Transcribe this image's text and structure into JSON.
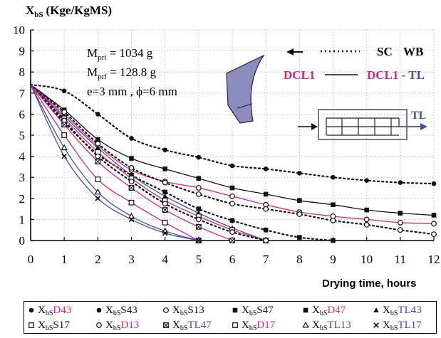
{
  "chart_data": {
    "type": "line",
    "ylabel": "X",
    "ylabel_sub": "bS",
    "ylabel_units": "(Kge/KgMS)",
    "xlabel": "Drying time, hours",
    "xlim": [
      0,
      12
    ],
    "ylim": [
      0,
      10
    ],
    "x_ticks": [
      0,
      1,
      2,
      3,
      4,
      5,
      6,
      7,
      8,
      9,
      10,
      11,
      12
    ],
    "y_ticks": [
      0,
      1,
      2,
      3,
      4,
      5,
      6,
      7,
      8,
      9,
      10
    ],
    "grid": true,
    "annotations": {
      "mpri": "M",
      "mpri_sub": "pri",
      "mpri_val": " = 1034 g",
      "mprf": "M",
      "mprf_sub": "prf",
      "mprf_val": " = 128.8 g",
      "geom": "e=3 mm , ϕ=6 mm",
      "sc_label": "SC",
      "wb_label": "WB",
      "dcl1_label": "DCL1",
      "dcl1tl_label": "DCL1",
      "dcl1tl_dash": " - ",
      "dcl1tl_tl": "TL",
      "tl_arrow_label": "TL"
    },
    "colors": {
      "black": "#111111",
      "pink": "#d6267c",
      "blue": "#3f4fa8",
      "shape": "#8c8cc0"
    },
    "series": [
      {
        "name": "XbsD43",
        "style": "dotted",
        "color": "black",
        "marker": "circle-filled",
        "x": [
          0,
          1,
          2,
          3,
          4,
          5,
          6,
          7,
          8,
          9,
          10,
          11,
          12
        ],
        "values": [
          7.4,
          7.1,
          6.0,
          4.85,
          4.3,
          3.95,
          3.55,
          3.4,
          3.2,
          3.0,
          2.85,
          2.75,
          2.7
        ]
      },
      {
        "name": "XbsS43",
        "style": "solid",
        "color": "black",
        "marker": "square-filled",
        "x": [
          0,
          1,
          2,
          3,
          4,
          5,
          6,
          7,
          8,
          9,
          10,
          11,
          12
        ],
        "values": [
          7.4,
          6.2,
          4.8,
          3.9,
          3.4,
          2.95,
          2.5,
          2.2,
          1.9,
          1.7,
          1.45,
          1.3,
          1.2
        ]
      },
      {
        "name": "XbsS13",
        "style": "solid",
        "color": "pink",
        "marker": "circle-open",
        "x": [
          0,
          1,
          2,
          3,
          4,
          5,
          6,
          7,
          8,
          9,
          10,
          11,
          12
        ],
        "values": [
          7.4,
          6.0,
          4.5,
          3.35,
          2.8,
          2.5,
          2.1,
          1.7,
          1.35,
          1.15,
          1.0,
          0.85,
          0.8
        ]
      },
      {
        "name": "XbsS47",
        "style": "dotted",
        "color": "black",
        "marker": "circle-open",
        "x": [
          0,
          1,
          2,
          3,
          4,
          5,
          6,
          7,
          8,
          9,
          10,
          11,
          12
        ],
        "values": [
          7.4,
          6.1,
          4.6,
          3.45,
          2.75,
          2.2,
          1.75,
          1.5,
          1.25,
          0.95,
          0.75,
          0.5,
          0.3
        ]
      },
      {
        "name": "XbsD47",
        "style": "dotted",
        "color": "black",
        "marker": "square-filled",
        "x": [
          0,
          1,
          2,
          3,
          4,
          5,
          6,
          7,
          8,
          9
        ],
        "values": [
          7.4,
          5.6,
          4.1,
          3.1,
          2.3,
          1.5,
          0.95,
          0.5,
          0.15,
          0.0
        ]
      },
      {
        "name": "XbsTL43",
        "style": "solid",
        "color": "blue",
        "marker": "triangle-filled",
        "x": [
          0,
          1,
          2,
          3,
          4,
          5,
          6,
          7
        ],
        "values": [
          7.4,
          5.9,
          4.4,
          3.1,
          2.1,
          1.3,
          0.6,
          0.0
        ]
      },
      {
        "name": "XbsS17",
        "style": "solid",
        "color": "pink",
        "marker": "square-open",
        "x": [
          0,
          1,
          2,
          3,
          4,
          5,
          6,
          7
        ],
        "values": [
          7.4,
          5.8,
          4.2,
          2.95,
          1.9,
          1.15,
          0.5,
          0.0
        ]
      },
      {
        "name": "XbsD13",
        "style": "dotted",
        "color": "black",
        "marker": "circle-open",
        "x": [
          0,
          1,
          2,
          3,
          4,
          5,
          6,
          7
        ],
        "values": [
          7.4,
          5.7,
          4.0,
          2.8,
          1.75,
          1.0,
          0.4,
          0.0
        ]
      },
      {
        "name": "XbsTL47",
        "style": "solid",
        "color": "pink",
        "marker": "square-x",
        "x": [
          0,
          1,
          2,
          3,
          4,
          5,
          6
        ],
        "values": [
          7.4,
          5.5,
          3.75,
          2.5,
          1.45,
          0.65,
          0.0
        ]
      },
      {
        "name": "XbsD17",
        "style": "solid",
        "color": "pink",
        "marker": "square-open",
        "x": [
          0,
          1,
          2,
          3,
          4,
          5
        ],
        "values": [
          7.4,
          5.0,
          2.9,
          1.8,
          0.85,
          0.0
        ]
      },
      {
        "name": "XbsTL13",
        "style": "solid",
        "color": "blue",
        "marker": "triangle-open",
        "x": [
          0,
          1,
          2,
          3,
          4,
          5
        ],
        "values": [
          7.4,
          4.4,
          2.3,
          1.15,
          0.45,
          0.0
        ]
      },
      {
        "name": "XbsTL17",
        "style": "solid",
        "color": "blue",
        "marker": "x",
        "x": [
          0,
          1,
          2,
          3,
          4,
          5
        ],
        "values": [
          7.4,
          4.0,
          2.0,
          1.0,
          0.35,
          0.0
        ]
      }
    ],
    "legend": [
      {
        "marker": "circle-filled",
        "prefix": "X",
        "sub": "bS",
        "suffix": "D43",
        "suffix_color": "pink"
      },
      {
        "marker": "circle-filled",
        "prefix": "X",
        "sub": "bS",
        "suffix": "S43",
        "suffix_color": "black"
      },
      {
        "marker": "circle-open",
        "prefix": "X",
        "sub": "bS",
        "suffix": "S13",
        "suffix_color": "black"
      },
      {
        "marker": "square-filled",
        "prefix": "X",
        "sub": "bS",
        "suffix": "S47",
        "suffix_color": "black"
      },
      {
        "marker": "square-filled",
        "prefix": "X",
        "sub": "bS",
        "suffix": "D47",
        "suffix_color": "pink"
      },
      {
        "marker": "triangle-filled",
        "prefix": "X",
        "sub": "bS",
        "suffix": "TL43",
        "suffix_color": "blue"
      },
      {
        "marker": "square-open",
        "prefix": "X",
        "sub": "bS",
        "suffix": "S17",
        "suffix_color": "black"
      },
      {
        "marker": "circle-open",
        "prefix": "X",
        "sub": "bS",
        "suffix": "D13",
        "suffix_color": "pink"
      },
      {
        "marker": "square-x",
        "prefix": "X",
        "sub": "bS",
        "suffix": "TL47",
        "suffix_color": "blue"
      },
      {
        "marker": "square-open",
        "prefix": "X",
        "sub": "bS",
        "suffix": "D17",
        "suffix_color": "pink"
      },
      {
        "marker": "triangle-open",
        "prefix": "X",
        "sub": "bS",
        "suffix": "TL13",
        "suffix_color": "blue"
      },
      {
        "marker": "x",
        "prefix": "X",
        "sub": "bS",
        "suffix": "TL17",
        "suffix_color": "blue"
      }
    ]
  }
}
